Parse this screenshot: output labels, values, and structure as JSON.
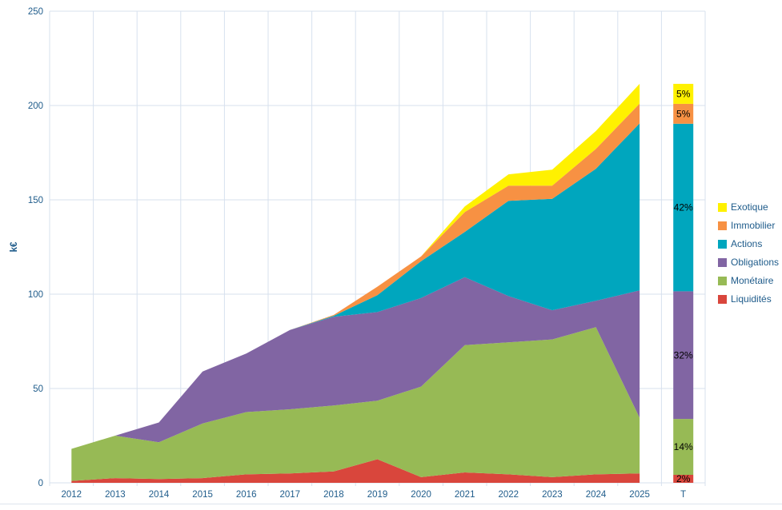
{
  "chart_data": {
    "type": "area",
    "stacked": true,
    "title": "",
    "xlabel": "",
    "ylabel": "k€",
    "ylim": [
      0,
      250
    ],
    "y_ticks": [
      0,
      50,
      100,
      150,
      200,
      250
    ],
    "y_tick_labels": [
      "0",
      "50",
      "100",
      "150",
      "200",
      "250"
    ],
    "grid": true,
    "legend_position": "right",
    "categories": [
      "2012",
      "2013",
      "2014",
      "2015",
      "2016",
      "2017",
      "2018",
      "2019",
      "2020",
      "2021",
      "2022",
      "2023",
      "2024",
      "2025"
    ],
    "series": [
      {
        "name": "Liquidités",
        "color": "#d9463c",
        "values": [
          1,
          2.5,
          2,
          2.5,
          4.5,
          5,
          6,
          12.5,
          3,
          5.5,
          4.5,
          3,
          4.5,
          5
        ]
      },
      {
        "name": "Monétaire",
        "color": "#97ba55",
        "values": [
          17,
          22.5,
          19.5,
          29,
          33,
          34,
          35,
          31,
          48,
          67.5,
          70,
          73,
          78,
          29.5
        ]
      },
      {
        "name": "Obligations",
        "color": "#8165a3",
        "values": [
          0,
          0,
          10.5,
          27.5,
          31,
          42,
          47,
          47,
          47,
          36,
          24.5,
          15.5,
          14,
          67.5
        ]
      },
      {
        "name": "Actions",
        "color": "#00a6be",
        "values": [
          0,
          0,
          0,
          0,
          0,
          0,
          0.5,
          9,
          19.5,
          24,
          50.5,
          59,
          70,
          88.5
        ]
      },
      {
        "name": "Immobilier",
        "color": "#f79143",
        "values": [
          0,
          0,
          0,
          0,
          0,
          0,
          0.5,
          4.5,
          2.5,
          10.5,
          8,
          7,
          10.5,
          10.5
        ]
      },
      {
        "name": "Exotique",
        "color": "#fff100",
        "values": [
          0,
          0,
          0,
          0,
          0,
          0,
          0,
          0,
          0,
          3,
          6,
          8.5,
          9.5,
          10.5
        ]
      }
    ],
    "total_column": {
      "label": "T",
      "total": 211.5,
      "percents": [
        2,
        14,
        32,
        42,
        5,
        5
      ],
      "percent_labels": [
        "2%",
        "14%",
        "32%",
        "42%",
        "5%",
        "5%"
      ]
    },
    "colors": {
      "axis_text": "#1f5c8b",
      "gridline": "#d7e1ee",
      "percent_label": "#000000",
      "background": "#ffffff"
    }
  }
}
